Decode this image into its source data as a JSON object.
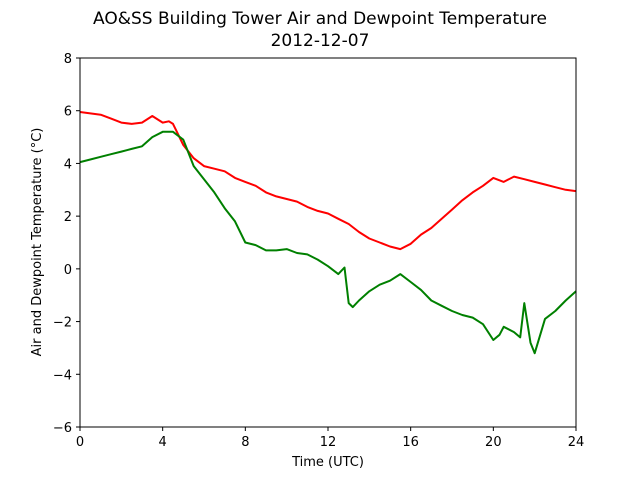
{
  "chart_data": {
    "type": "line",
    "title": "AO&SS Building Tower Air and Dewpoint Temperature",
    "subtitle": "2012-12-07",
    "xlabel": "Time (UTC)",
    "ylabel": "Air and Dewpoint Temperature (°C)",
    "xlim": [
      0,
      24
    ],
    "ylim": [
      -6,
      8
    ],
    "xticks": [
      0,
      4,
      8,
      12,
      16,
      20,
      24
    ],
    "yticks": [
      -6,
      -4,
      -2,
      0,
      2,
      4,
      6,
      8
    ],
    "grid": false,
    "series": [
      {
        "color": "#ff0000",
        "x": [
          0,
          0.5,
          1,
          1.5,
          2,
          2.5,
          3,
          3.5,
          4,
          4.3,
          4.5,
          5,
          5.5,
          6,
          6.5,
          7,
          7.5,
          8,
          8.5,
          9,
          9.5,
          10,
          10.5,
          11,
          11.5,
          12,
          12.5,
          13,
          13.5,
          14,
          14.5,
          15,
          15.5,
          16,
          16.5,
          17,
          17.5,
          18,
          18.5,
          19,
          19.5,
          20,
          20.5,
          21,
          21.5,
          22,
          22.5,
          23,
          23.5,
          24
        ],
        "y": [
          5.95,
          5.9,
          5.85,
          5.7,
          5.55,
          5.5,
          5.55,
          5.8,
          5.55,
          5.6,
          5.5,
          4.7,
          4.2,
          3.9,
          3.8,
          3.7,
          3.45,
          3.3,
          3.15,
          2.9,
          2.75,
          2.65,
          2.55,
          2.35,
          2.2,
          2.1,
          1.9,
          1.7,
          1.4,
          1.15,
          1.0,
          0.85,
          0.75,
          0.95,
          1.3,
          1.55,
          1.9,
          2.25,
          2.6,
          2.9,
          3.15,
          3.45,
          3.3,
          3.5,
          3.4,
          3.3,
          3.2,
          3.1,
          3.0,
          2.95
        ]
      },
      {
        "color": "#008000",
        "x": [
          0,
          0.5,
          1,
          1.5,
          2,
          2.5,
          3,
          3.5,
          4,
          4.5,
          5,
          5.5,
          6,
          6.5,
          7,
          7.5,
          8,
          8.5,
          9,
          9.5,
          10,
          10.5,
          11,
          11.5,
          12,
          12.5,
          12.8,
          13,
          13.2,
          13.5,
          14,
          14.5,
          15,
          15.5,
          16,
          16.5,
          17,
          17.5,
          18,
          18.5,
          19,
          19.5,
          20,
          20.3,
          20.5,
          21,
          21.3,
          21.5,
          21.8,
          22,
          22.5,
          23,
          23.5,
          24
        ],
        "y": [
          4.05,
          4.15,
          4.25,
          4.35,
          4.45,
          4.55,
          4.65,
          5.0,
          5.2,
          5.2,
          4.9,
          3.9,
          3.4,
          2.9,
          2.3,
          1.8,
          1.0,
          0.9,
          0.7,
          0.7,
          0.75,
          0.6,
          0.55,
          0.35,
          0.1,
          -0.2,
          0.05,
          -1.3,
          -1.45,
          -1.2,
          -0.85,
          -0.6,
          -0.45,
          -0.2,
          -0.5,
          -0.8,
          -1.2,
          -1.4,
          -1.6,
          -1.75,
          -1.85,
          -2.1,
          -2.7,
          -2.5,
          -2.2,
          -2.4,
          -2.6,
          -1.3,
          -2.8,
          -3.2,
          -1.9,
          -1.6,
          -1.2,
          -0.85
        ]
      }
    ]
  }
}
